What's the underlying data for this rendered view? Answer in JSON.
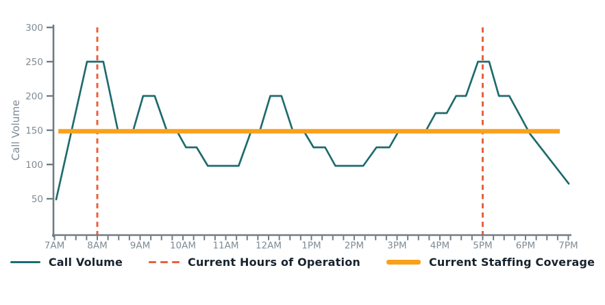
{
  "colors": {
    "call_volume_line": "#1E6B6E",
    "hours_of_operation_line": "#E8613C",
    "staffing_coverage_line": "#F9A11B",
    "axis": "#6E7B84",
    "tick_label": "#7E8B95",
    "axis_title": "#7E8B95",
    "legend_text": "#17232E",
    "background": "#FFFFFF"
  },
  "y_axis": {
    "label": "Call Volume",
    "tick_labels": [
      "50",
      "100",
      "150",
      "200",
      "250",
      "300"
    ]
  },
  "x_axis": {
    "tick_labels": [
      "7AM",
      "8AM",
      "9AM",
      "10AM",
      "11AM",
      "12AM",
      "1PM",
      "2PM",
      "3PM",
      "4PM",
      "5PM",
      "6PM",
      "7PM"
    ]
  },
  "legend": {
    "items": [
      {
        "label": "Call Volume",
        "marker": "solid-teal-line"
      },
      {
        "label": "Current Hours of Operation",
        "marker": "dashed-tomato-line"
      },
      {
        "label": "Current Staffing Coverage",
        "marker": "thick-orange-line"
      }
    ]
  },
  "chart_data": {
    "type": "line",
    "title": "",
    "xlabel": "",
    "ylabel": "Call Volume",
    "x_unit": "decimal hour of day (7 = 7AM, 12 = noon, 19 = 7PM)",
    "xlim": [
      7,
      19
    ],
    "ylim": [
      0,
      300
    ],
    "y_ticks": [
      50,
      100,
      150,
      200,
      250,
      300
    ],
    "x_tick_labels": [
      "7AM",
      "8AM",
      "9AM",
      "10AM",
      "11AM",
      "12AM",
      "1PM",
      "2PM",
      "3PM",
      "4PM",
      "5PM",
      "6PM",
      "7PM"
    ],
    "minor_x_tick_interval_minutes": 15,
    "grid": false,
    "legend_position": "bottom",
    "series": [
      {
        "name": "Call Volume",
        "type": "line",
        "color": "#1E6B6E",
        "points": [
          [
            7.04,
            49
          ],
          [
            7.76,
            250
          ],
          [
            8.14,
            250
          ],
          [
            8.48,
            150
          ],
          [
            8.84,
            150
          ],
          [
            9.07,
            200
          ],
          [
            9.34,
            200
          ],
          [
            9.62,
            150
          ],
          [
            9.85,
            150
          ],
          [
            10.07,
            125
          ],
          [
            10.32,
            125
          ],
          [
            10.58,
            98
          ],
          [
            11.3,
            98
          ],
          [
            11.6,
            150
          ],
          [
            11.8,
            150
          ],
          [
            12.04,
            200
          ],
          [
            12.3,
            200
          ],
          [
            12.56,
            150
          ],
          [
            12.81,
            150
          ],
          [
            13.05,
            125
          ],
          [
            13.32,
            125
          ],
          [
            13.56,
            98
          ],
          [
            14.21,
            98
          ],
          [
            14.52,
            125
          ],
          [
            14.82,
            125
          ],
          [
            15.05,
            150
          ],
          [
            15.68,
            150
          ],
          [
            15.9,
            175
          ],
          [
            16.16,
            175
          ],
          [
            16.38,
            200
          ],
          [
            16.61,
            200
          ],
          [
            16.89,
            250
          ],
          [
            17.15,
            250
          ],
          [
            17.38,
            200
          ],
          [
            17.62,
            200
          ],
          [
            18.1,
            145
          ],
          [
            19.01,
            72
          ]
        ]
      },
      {
        "name": "Current Hours of Operation",
        "type": "vline",
        "style": "dashed",
        "color": "#E8613C",
        "x": [
          8,
          17
        ],
        "x_labels": [
          "8AM",
          "5PM"
        ]
      },
      {
        "name": "Current Staffing Coverage",
        "type": "hline",
        "style": "solid-thick",
        "color": "#F9A11B",
        "y": 148,
        "x_extent": [
          7.09,
          18.8
        ]
      }
    ]
  }
}
